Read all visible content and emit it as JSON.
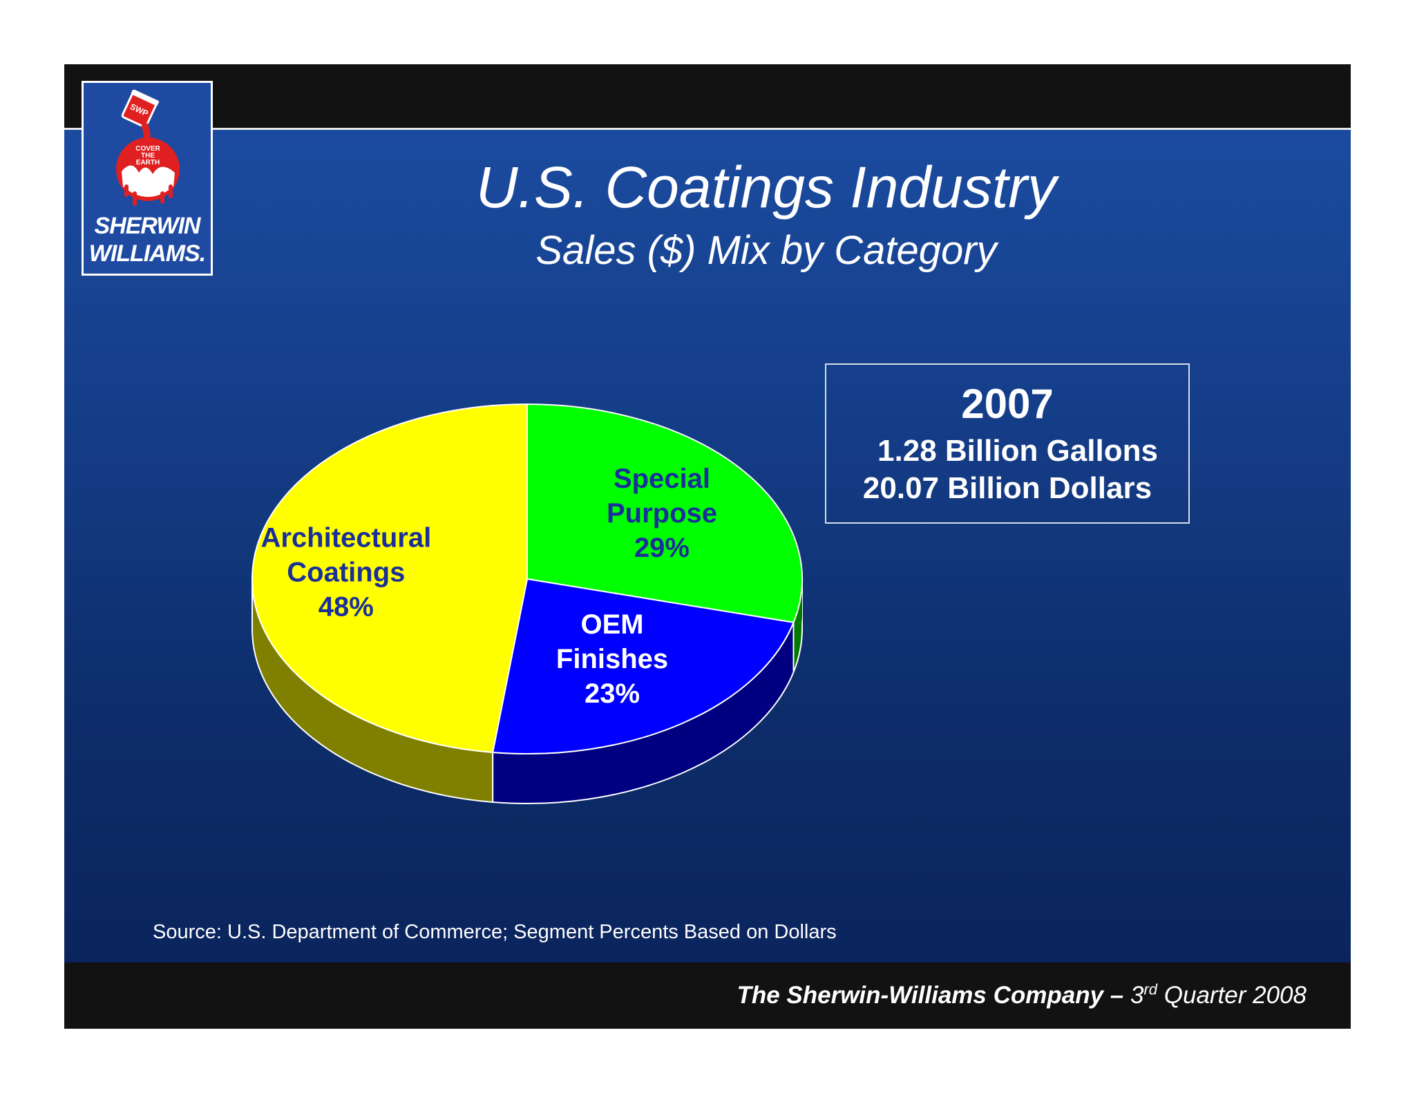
{
  "slide": {
    "title": "U.S. Coatings Industry",
    "subtitle": "Sales ($) Mix by Category",
    "logo": {
      "name": "sherwin-williams-logo",
      "line1": "SHERWIN",
      "line2": "WILLIAMS.",
      "badge": [
        "COVER",
        "THE",
        "EARTH"
      ]
    },
    "info_box": {
      "year": "2007",
      "gallons": "1.28 Billion Gallons",
      "dollars": "20.07 Billion Dollars"
    },
    "source": "Source: U.S. Department of Commerce; Segment Percents Based on Dollars",
    "footer": {
      "company": "The Sherwin-Williams Company –",
      "quarter_num": "3",
      "quarter_sup": "rd",
      "quarter_rest": "Quarter 2008"
    }
  },
  "chart_data": {
    "type": "pie",
    "style": "3d",
    "categories": [
      "Special Purpose",
      "OEM Finishes",
      "Architectural Coatings"
    ],
    "values": [
      29,
      23,
      48
    ],
    "unit": "%",
    "colors": [
      "#00ff00",
      "#0000ff",
      "#ffff00"
    ],
    "side_colors": [
      "#007a00",
      "#000080",
      "#808000"
    ],
    "labels": [
      {
        "lines": [
          "Special",
          "Purpose",
          "29%"
        ],
        "color": "#1a2f9a"
      },
      {
        "lines": [
          "OEM",
          "Finishes",
          "23%"
        ],
        "color": "#ffffff"
      },
      {
        "lines": [
          "Architectural",
          "Coatings",
          "48%"
        ],
        "color": "#1a2f9a"
      }
    ],
    "legend": "none"
  }
}
